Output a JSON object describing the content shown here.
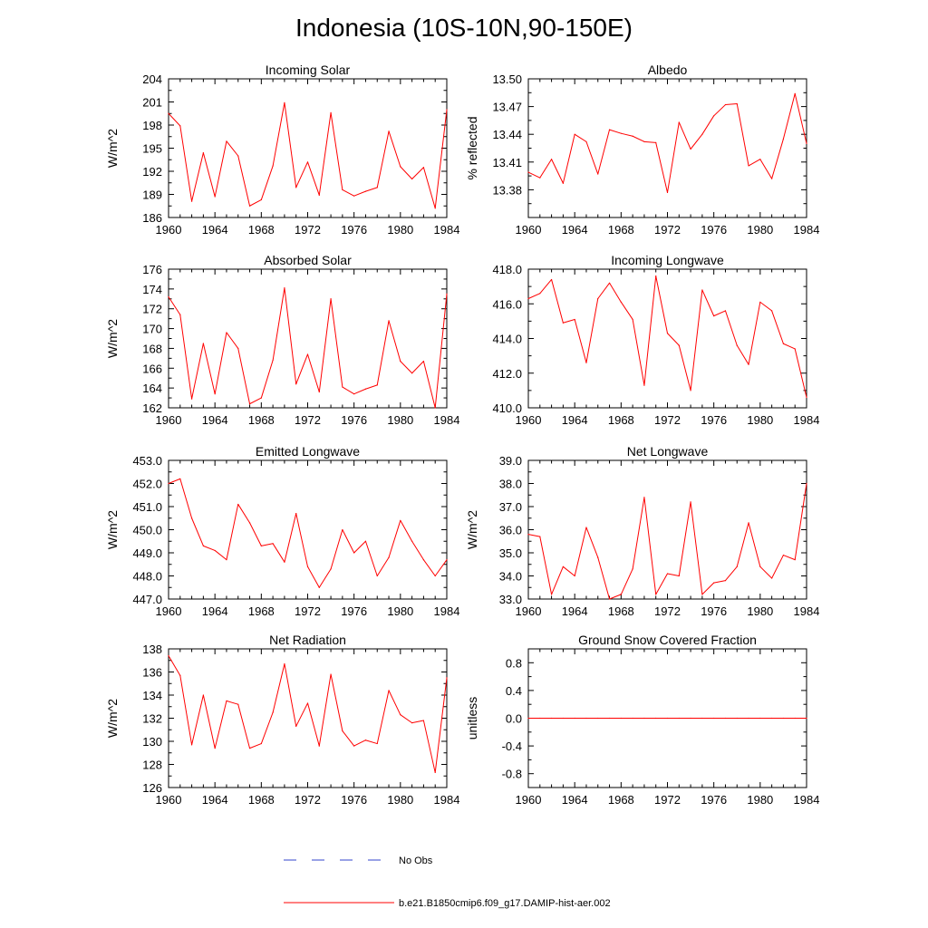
{
  "figure": {
    "title": "Indonesia (10S-10N,90-150E)",
    "series_color": "#ff0000",
    "obs_color": "#3344cc"
  },
  "legend": {
    "obs_label": "No Obs",
    "model_label": "b.e21.B1850cmip6.f09_g17.DAMIP-hist-aer.002"
  },
  "chart_data": [
    {
      "type": "line",
      "title": "Incoming Solar",
      "ylabel": "W/m^2",
      "xlabel": "",
      "xlim": [
        1960,
        1984
      ],
      "ylim": [
        186,
        204
      ],
      "xticks": [
        "1960",
        "1964",
        "1968",
        "1972",
        "1976",
        "1980",
        "1984"
      ],
      "yticks": [
        "186",
        "189",
        "192",
        "195",
        "198",
        "201",
        "204"
      ],
      "ytick_values": [
        186,
        189,
        192,
        195,
        198,
        201,
        204
      ],
      "grid": false,
      "x": [
        1960,
        1961,
        1962,
        1963,
        1964,
        1965,
        1966,
        1967,
        1968,
        1969,
        1970,
        1971,
        1972,
        1973,
        1974,
        1975,
        1976,
        1977,
        1978,
        1979,
        1980,
        1981,
        1982,
        1983,
        1984
      ],
      "series": [
        {
          "values": [
            199.5,
            197.9,
            188.1,
            194.4,
            188.7,
            195.9,
            194.0,
            187.5,
            188.3,
            192.7,
            200.9,
            189.9,
            193.2,
            188.9,
            199.6,
            189.6,
            188.8,
            189.4,
            189.9,
            197.2,
            192.6,
            191.0,
            192.5,
            187.2,
            200.0
          ]
        }
      ]
    },
    {
      "type": "line",
      "title": "Albedo",
      "ylabel": "% reflected",
      "xlabel": "",
      "xlim": [
        1960,
        1984
      ],
      "ylim": [
        13.35,
        13.5
      ],
      "xticks": [
        "1960",
        "1964",
        "1968",
        "1972",
        "1976",
        "1980",
        "1984"
      ],
      "yticks": [
        "13.38",
        "13.41",
        "13.44",
        "13.47",
        "13.50"
      ],
      "ytick_values": [
        13.38,
        13.41,
        13.44,
        13.47,
        13.5
      ],
      "grid": false,
      "x": [
        1960,
        1961,
        1962,
        1963,
        1964,
        1965,
        1966,
        1967,
        1968,
        1969,
        1970,
        1971,
        1972,
        1973,
        1974,
        1975,
        1976,
        1977,
        1978,
        1979,
        1980,
        1981,
        1982,
        1983,
        1984
      ],
      "series": [
        {
          "values": [
            13.399,
            13.393,
            13.413,
            13.387,
            13.44,
            13.432,
            13.397,
            13.445,
            13.441,
            13.438,
            13.432,
            13.431,
            13.377,
            13.453,
            13.424,
            13.44,
            13.46,
            13.472,
            13.473,
            13.406,
            13.413,
            13.392,
            13.435,
            13.484,
            13.43
          ]
        }
      ]
    },
    {
      "type": "line",
      "title": "Absorbed Solar",
      "ylabel": "W/m^2",
      "xlabel": "",
      "xlim": [
        1960,
        1984
      ],
      "ylim": [
        162,
        176
      ],
      "xticks": [
        "1960",
        "1964",
        "1968",
        "1972",
        "1976",
        "1980",
        "1984"
      ],
      "yticks": [
        "162",
        "164",
        "166",
        "168",
        "170",
        "172",
        "174",
        "176"
      ],
      "ytick_values": [
        162,
        164,
        166,
        168,
        170,
        172,
        174,
        176
      ],
      "grid": false,
      "x": [
        1960,
        1961,
        1962,
        1963,
        1964,
        1965,
        1966,
        1967,
        1968,
        1969,
        1970,
        1971,
        1972,
        1973,
        1974,
        1975,
        1976,
        1977,
        1978,
        1979,
        1980,
        1981,
        1982,
        1983,
        1984
      ],
      "series": [
        {
          "values": [
            173.2,
            171.4,
            162.9,
            168.5,
            163.4,
            169.6,
            168.0,
            162.4,
            163.0,
            166.8,
            174.1,
            164.4,
            167.4,
            163.6,
            173.0,
            164.1,
            163.4,
            163.9,
            164.3,
            170.8,
            166.7,
            165.5,
            166.7,
            162.0,
            173.5
          ]
        }
      ]
    },
    {
      "type": "line",
      "title": "Incoming Longwave",
      "ylabel": "",
      "xlabel": "",
      "xlim": [
        1960,
        1984
      ],
      "ylim": [
        410.0,
        418.0
      ],
      "xticks": [
        "1960",
        "1964",
        "1968",
        "1972",
        "1976",
        "1980",
        "1984"
      ],
      "yticks": [
        "410.0",
        "412.0",
        "414.0",
        "416.0",
        "418.0"
      ],
      "ytick_values": [
        410.0,
        412.0,
        414.0,
        416.0,
        418.0
      ],
      "grid": false,
      "x": [
        1960,
        1961,
        1962,
        1963,
        1964,
        1965,
        1966,
        1967,
        1968,
        1969,
        1970,
        1971,
        1972,
        1973,
        1974,
        1975,
        1976,
        1977,
        1978,
        1979,
        1980,
        1981,
        1982,
        1983,
        1984
      ],
      "series": [
        {
          "values": [
            416.3,
            416.6,
            417.4,
            414.9,
            415.1,
            412.6,
            416.3,
            417.2,
            416.1,
            415.1,
            411.3,
            417.6,
            414.3,
            413.6,
            411.0,
            416.8,
            415.3,
            415.6,
            413.6,
            412.5,
            416.1,
            415.6,
            413.7,
            413.4,
            410.6
          ]
        }
      ]
    },
    {
      "type": "line",
      "title": "Emitted Longwave",
      "ylabel": "W/m^2",
      "xlabel": "",
      "xlim": [
        1960,
        1984
      ],
      "ylim": [
        447.0,
        453.0
      ],
      "xticks": [
        "1960",
        "1964",
        "1968",
        "1972",
        "1976",
        "1980",
        "1984"
      ],
      "yticks": [
        "447.0",
        "448.0",
        "449.0",
        "450.0",
        "451.0",
        "452.0",
        "453.0"
      ],
      "ytick_values": [
        447.0,
        448.0,
        449.0,
        450.0,
        451.0,
        452.0,
        453.0
      ],
      "grid": false,
      "x": [
        1960,
        1961,
        1962,
        1963,
        1964,
        1965,
        1966,
        1967,
        1968,
        1969,
        1970,
        1971,
        1972,
        1973,
        1974,
        1975,
        1976,
        1977,
        1978,
        1979,
        1980,
        1981,
        1982,
        1983,
        1984
      ],
      "series": [
        {
          "values": [
            452.0,
            452.2,
            450.5,
            449.3,
            449.1,
            448.7,
            451.1,
            450.3,
            449.3,
            449.4,
            448.6,
            450.7,
            448.4,
            447.5,
            448.3,
            450.0,
            449.0,
            449.5,
            448.0,
            448.8,
            450.4,
            449.5,
            448.7,
            448.0,
            448.7
          ]
        }
      ]
    },
    {
      "type": "line",
      "title": "Net Longwave",
      "ylabel": "W/m^2",
      "xlabel": "",
      "xlim": [
        1960,
        1984
      ],
      "ylim": [
        33.0,
        39.0
      ],
      "xticks": [
        "1960",
        "1964",
        "1968",
        "1972",
        "1976",
        "1980",
        "1984"
      ],
      "yticks": [
        "33.0",
        "34.0",
        "35.0",
        "36.0",
        "37.0",
        "38.0",
        "39.0"
      ],
      "ytick_values": [
        33.0,
        34.0,
        35.0,
        36.0,
        37.0,
        38.0,
        39.0
      ],
      "grid": false,
      "x": [
        1960,
        1961,
        1962,
        1963,
        1964,
        1965,
        1966,
        1967,
        1968,
        1969,
        1970,
        1971,
        1972,
        1973,
        1974,
        1975,
        1976,
        1977,
        1978,
        1979,
        1980,
        1981,
        1982,
        1983,
        1984
      ],
      "series": [
        {
          "values": [
            35.8,
            35.7,
            33.2,
            34.4,
            34.0,
            36.1,
            34.8,
            33.0,
            33.2,
            34.3,
            37.4,
            33.2,
            34.1,
            34.0,
            37.2,
            33.2,
            33.7,
            33.8,
            34.4,
            36.3,
            34.4,
            33.9,
            34.9,
            34.7,
            38.0
          ]
        }
      ]
    },
    {
      "type": "line",
      "title": "Net Radiation",
      "ylabel": "W/m^2",
      "xlabel": "",
      "xlim": [
        1960,
        1984
      ],
      "ylim": [
        126,
        138
      ],
      "xticks": [
        "1960",
        "1964",
        "1968",
        "1972",
        "1976",
        "1980",
        "1984"
      ],
      "yticks": [
        "126",
        "128",
        "130",
        "132",
        "134",
        "136",
        "138"
      ],
      "ytick_values": [
        126,
        128,
        130,
        132,
        134,
        136,
        138
      ],
      "grid": false,
      "x": [
        1960,
        1961,
        1962,
        1963,
        1964,
        1965,
        1966,
        1967,
        1968,
        1969,
        1970,
        1971,
        1972,
        1973,
        1974,
        1975,
        1976,
        1977,
        1978,
        1979,
        1980,
        1981,
        1982,
        1983,
        1984
      ],
      "series": [
        {
          "values": [
            137.4,
            135.7,
            129.7,
            134.0,
            129.4,
            133.5,
            133.2,
            129.4,
            129.8,
            132.5,
            136.7,
            131.3,
            133.3,
            129.6,
            135.8,
            130.9,
            129.6,
            130.1,
            129.8,
            134.4,
            132.3,
            131.6,
            131.8,
            127.3,
            135.5
          ]
        }
      ]
    },
    {
      "type": "line",
      "title": "Ground Snow Covered Fraction",
      "ylabel": "unitless",
      "xlabel": "",
      "xlim": [
        1960,
        1984
      ],
      "ylim": [
        -1.0,
        1.0
      ],
      "xticks": [
        "1960",
        "1964",
        "1968",
        "1972",
        "1976",
        "1980",
        "1984"
      ],
      "yticks": [
        "-0.8",
        "-0.4",
        "0.0",
        "0.4",
        "0.8"
      ],
      "ytick_values": [
        -0.8,
        -0.4,
        0.0,
        0.4,
        0.8
      ],
      "grid": false,
      "x": [
        1960,
        1961,
        1962,
        1963,
        1964,
        1965,
        1966,
        1967,
        1968,
        1969,
        1970,
        1971,
        1972,
        1973,
        1974,
        1975,
        1976,
        1977,
        1978,
        1979,
        1980,
        1981,
        1982,
        1983,
        1984
      ],
      "series": [
        {
          "values": [
            0,
            0,
            0,
            0,
            0,
            0,
            0,
            0,
            0,
            0,
            0,
            0,
            0,
            0,
            0,
            0,
            0,
            0,
            0,
            0,
            0,
            0,
            0,
            0,
            0
          ]
        }
      ]
    }
  ]
}
